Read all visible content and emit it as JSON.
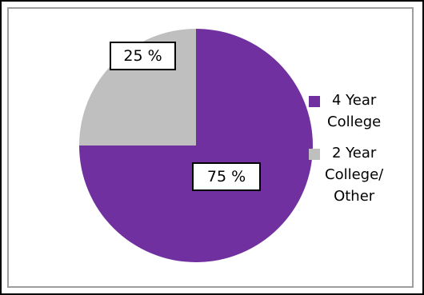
{
  "chart_data": {
    "type": "pie",
    "categories": [
      "4 Year College",
      "2 Year College/ Other"
    ],
    "values": [
      75,
      25
    ],
    "data_labels": [
      "75 %",
      "25 %"
    ],
    "colors": [
      "#7030a0",
      "#bfbfbf"
    ],
    "legend_position": "right",
    "start_angle": "12 o'clock, clockwise"
  },
  "legend": {
    "items": [
      {
        "label": "4 Year\nCollege",
        "color": "#7030a0"
      },
      {
        "label": "2 Year\nCollege/\nOther",
        "color": "#bfbfbf"
      }
    ]
  }
}
